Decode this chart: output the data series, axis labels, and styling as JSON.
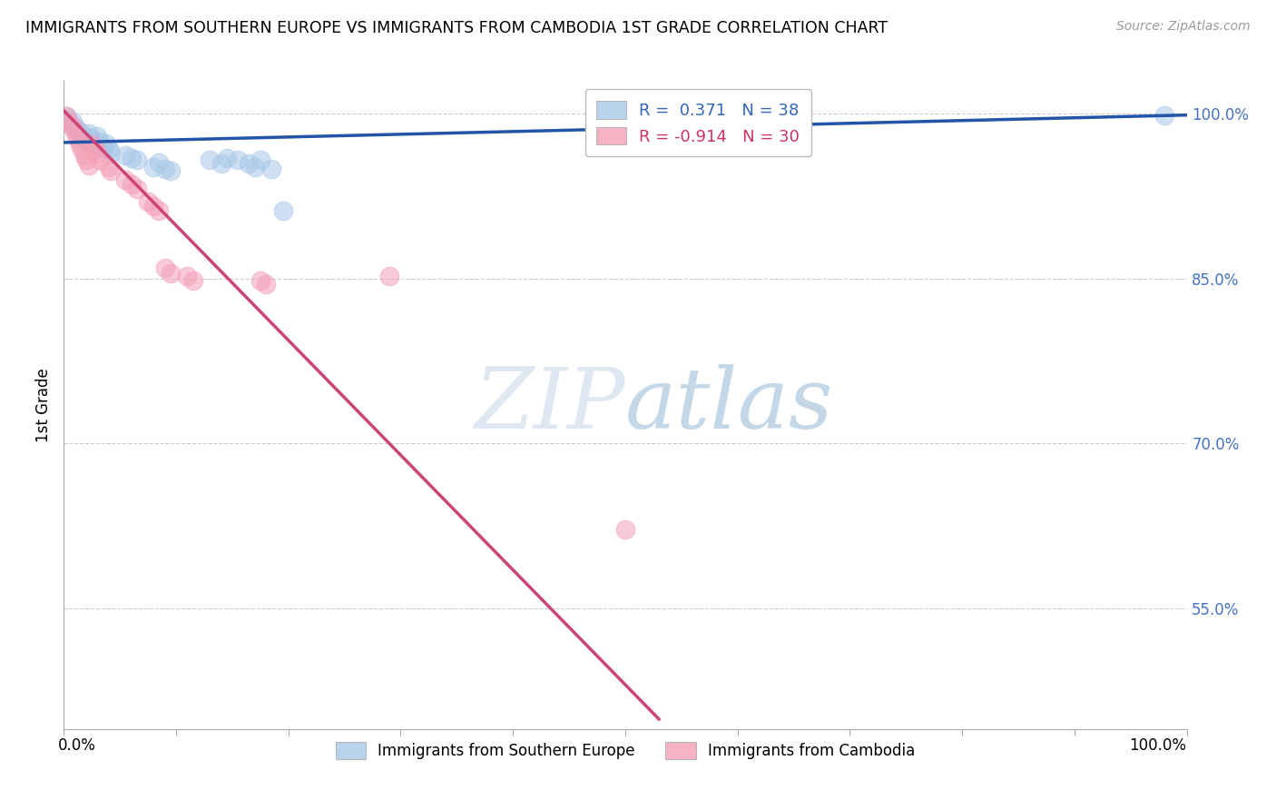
{
  "title": "IMMIGRANTS FROM SOUTHERN EUROPE VS IMMIGRANTS FROM CAMBODIA 1ST GRADE CORRELATION CHART",
  "source": "Source: ZipAtlas.com",
  "ylabel": "1st Grade",
  "blue_label": "Immigrants from Southern Europe",
  "pink_label": "Immigrants from Cambodia",
  "blue_R": "0.371",
  "blue_N": "38",
  "pink_R": "-0.914",
  "pink_N": "30",
  "blue_color": "#a8c8e8",
  "pink_color": "#f4a0b8",
  "blue_line_color": "#2255aa",
  "pink_line_color": "#cc4477",
  "xlim": [
    0.0,
    1.0
  ],
  "ylim": [
    0.44,
    1.03
  ],
  "yticks": [
    0.55,
    0.7,
    0.85,
    1.0
  ],
  "ytick_labels": [
    "55.0%",
    "70.0%",
    "85.0%",
    "100.0%"
  ],
  "blue_scatter": [
    [
      0.002,
      0.998
    ],
    [
      0.004,
      0.995
    ],
    [
      0.006,
      0.99
    ],
    [
      0.008,
      0.993
    ],
    [
      0.01,
      0.988
    ],
    [
      0.012,
      0.985
    ],
    [
      0.014,
      0.98
    ],
    [
      0.016,
      0.983
    ],
    [
      0.018,
      0.978
    ],
    [
      0.02,
      0.975
    ],
    [
      0.022,
      0.982
    ],
    [
      0.024,
      0.978
    ],
    [
      0.026,
      0.975
    ],
    [
      0.028,
      0.972
    ],
    [
      0.03,
      0.98
    ],
    [
      0.032,
      0.975
    ],
    [
      0.034,
      0.97
    ],
    [
      0.036,
      0.968
    ],
    [
      0.038,
      0.973
    ],
    [
      0.04,
      0.968
    ],
    [
      0.042,
      0.965
    ],
    [
      0.055,
      0.962
    ],
    [
      0.06,
      0.96
    ],
    [
      0.065,
      0.958
    ],
    [
      0.08,
      0.952
    ],
    [
      0.085,
      0.956
    ],
    [
      0.09,
      0.95
    ],
    [
      0.095,
      0.948
    ],
    [
      0.13,
      0.958
    ],
    [
      0.14,
      0.955
    ],
    [
      0.145,
      0.96
    ],
    [
      0.155,
      0.958
    ],
    [
      0.165,
      0.955
    ],
    [
      0.17,
      0.952
    ],
    [
      0.175,
      0.958
    ],
    [
      0.185,
      0.95
    ],
    [
      0.195,
      0.912
    ],
    [
      0.98,
      0.999
    ]
  ],
  "pink_scatter": [
    [
      0.002,
      0.998
    ],
    [
      0.005,
      0.992
    ],
    [
      0.008,
      0.988
    ],
    [
      0.01,
      0.983
    ],
    [
      0.012,
      0.978
    ],
    [
      0.014,
      0.972
    ],
    [
      0.016,
      0.968
    ],
    [
      0.018,
      0.962
    ],
    [
      0.02,
      0.958
    ],
    [
      0.022,
      0.953
    ],
    [
      0.025,
      0.972
    ],
    [
      0.028,
      0.968
    ],
    [
      0.03,
      0.964
    ],
    [
      0.032,
      0.958
    ],
    [
      0.04,
      0.952
    ],
    [
      0.042,
      0.948
    ],
    [
      0.055,
      0.94
    ],
    [
      0.06,
      0.936
    ],
    [
      0.065,
      0.932
    ],
    [
      0.075,
      0.92
    ],
    [
      0.08,
      0.916
    ],
    [
      0.085,
      0.912
    ],
    [
      0.09,
      0.86
    ],
    [
      0.095,
      0.855
    ],
    [
      0.11,
      0.852
    ],
    [
      0.115,
      0.848
    ],
    [
      0.175,
      0.848
    ],
    [
      0.18,
      0.845
    ],
    [
      0.29,
      0.852
    ],
    [
      0.5,
      0.622
    ]
  ],
  "blue_trend_x": [
    0.0,
    1.0
  ],
  "blue_trend_y": [
    0.974,
    0.999
  ],
  "pink_trend_x": [
    0.0,
    0.53
  ],
  "pink_trend_y": [
    1.003,
    0.449
  ],
  "grid_color": "#cccccc",
  "watermark_color": "#c8d8f0"
}
